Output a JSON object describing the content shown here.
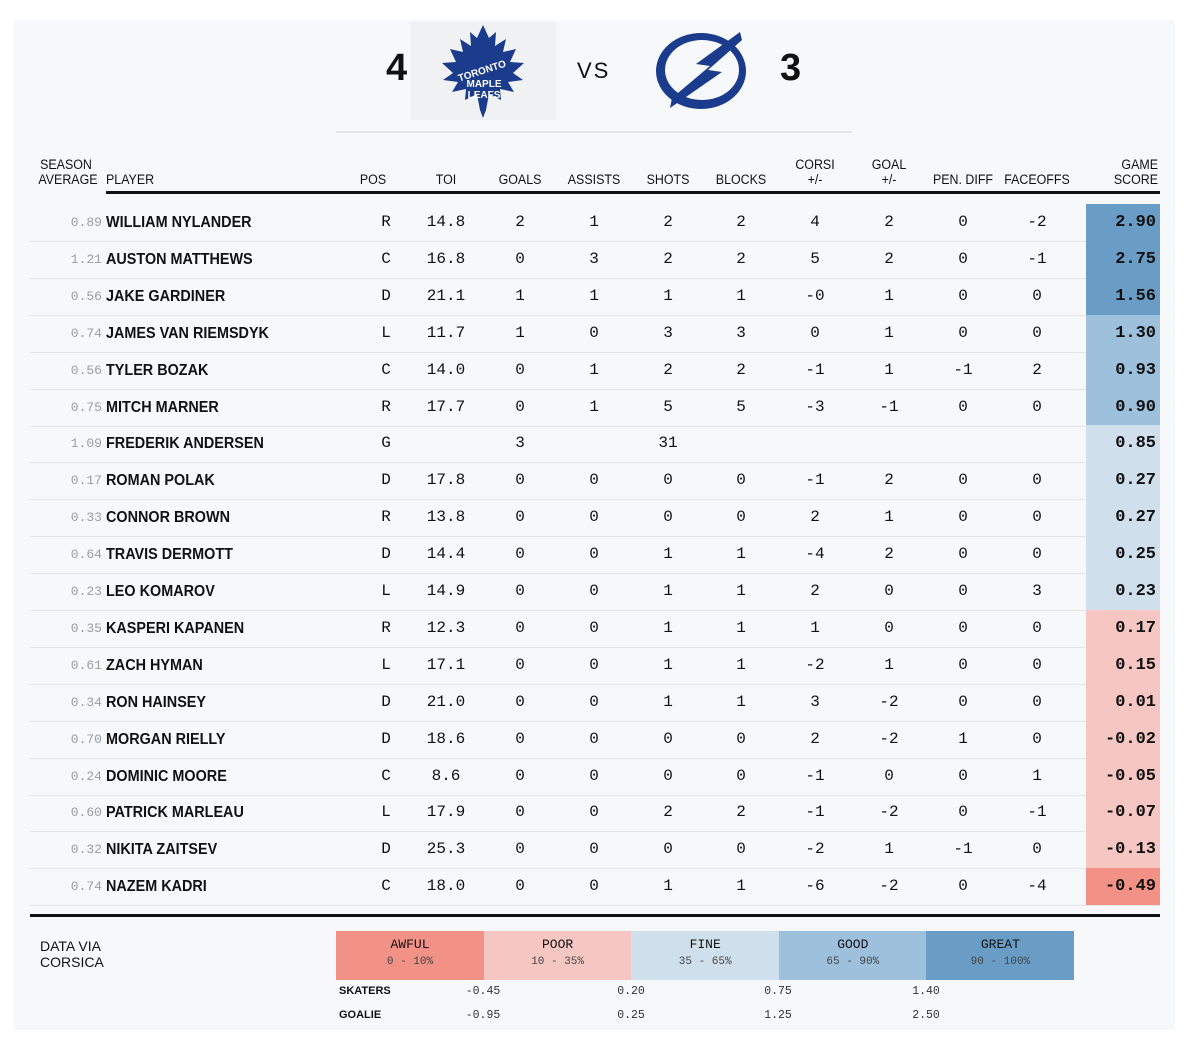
{
  "header": {
    "home_score": "4",
    "away_score": "3",
    "vs_label": "VS",
    "home_logo_text": [
      "TORONTO",
      "MAPLE",
      "LEAFS"
    ],
    "home_color": "#1b3b8c",
    "away_color": "#1b3b8c"
  },
  "columns": {
    "season_average": [
      "SEASON",
      "AVERAGE"
    ],
    "player": "PLAYER",
    "pos": "POS",
    "toi": "TOI",
    "goals": "GOALS",
    "assists": "ASSISTS",
    "shots": "SHOTS",
    "blocks": "BLOCKS",
    "corsi": [
      "CORSI",
      "+/-"
    ],
    "goal_pm": [
      "GOAL",
      "+/-"
    ],
    "pen_diff": "PEN. DIFF",
    "faceoffs": "FACEOFFS",
    "game_score": [
      "GAME",
      "SCORE"
    ]
  },
  "rows": [
    {
      "avg": "0.89",
      "name": "WILLIAM NYLANDER",
      "pos": "R",
      "toi": "14.8",
      "goals": "2",
      "assists": "1",
      "shots": "2",
      "blocks": "2",
      "corsi": "4",
      "goal_pm": "2",
      "pen": "0",
      "faceoffs": "-2",
      "gs": "2.90",
      "tier": "great"
    },
    {
      "avg": "1.21",
      "name": "AUSTON MATTHEWS",
      "pos": "C",
      "toi": "16.8",
      "goals": "0",
      "assists": "3",
      "shots": "2",
      "blocks": "2",
      "corsi": "5",
      "goal_pm": "2",
      "pen": "0",
      "faceoffs": "-1",
      "gs": "2.75",
      "tier": "great"
    },
    {
      "avg": "0.56",
      "name": "JAKE GARDINER",
      "pos": "D",
      "toi": "21.1",
      "goals": "1",
      "assists": "1",
      "shots": "1",
      "blocks": "1",
      "corsi": "-0",
      "goal_pm": "1",
      "pen": "0",
      "faceoffs": "0",
      "gs": "1.56",
      "tier": "great"
    },
    {
      "avg": "0.74",
      "name": "JAMES VAN RIEMSDYK",
      "pos": "L",
      "toi": "11.7",
      "goals": "1",
      "assists": "0",
      "shots": "3",
      "blocks": "3",
      "corsi": "0",
      "goal_pm": "1",
      "pen": "0",
      "faceoffs": "0",
      "gs": "1.30",
      "tier": "good"
    },
    {
      "avg": "0.56",
      "name": "TYLER BOZAK",
      "pos": "C",
      "toi": "14.0",
      "goals": "0",
      "assists": "1",
      "shots": "2",
      "blocks": "2",
      "corsi": "-1",
      "goal_pm": "1",
      "pen": "-1",
      "faceoffs": "2",
      "gs": "0.93",
      "tier": "good"
    },
    {
      "avg": "0.75",
      "name": "MITCH MARNER",
      "pos": "R",
      "toi": "17.7",
      "goals": "0",
      "assists": "1",
      "shots": "5",
      "blocks": "5",
      "corsi": "-3",
      "goal_pm": "-1",
      "pen": "0",
      "faceoffs": "0",
      "gs": "0.90",
      "tier": "good"
    },
    {
      "avg": "1.09",
      "name": "FREDERIK ANDERSEN",
      "pos": "G",
      "toi": "",
      "goals": "3",
      "assists": "",
      "shots": "31",
      "blocks": "",
      "corsi": "",
      "goal_pm": "",
      "pen": "",
      "faceoffs": "",
      "gs": "0.85",
      "tier": "fine"
    },
    {
      "avg": "0.17",
      "name": "ROMAN POLAK",
      "pos": "D",
      "toi": "17.8",
      "goals": "0",
      "assists": "0",
      "shots": "0",
      "blocks": "0",
      "corsi": "-1",
      "goal_pm": "2",
      "pen": "0",
      "faceoffs": "0",
      "gs": "0.27",
      "tier": "fine"
    },
    {
      "avg": "0.33",
      "name": "CONNOR BROWN",
      "pos": "R",
      "toi": "13.8",
      "goals": "0",
      "assists": "0",
      "shots": "0",
      "blocks": "0",
      "corsi": "2",
      "goal_pm": "1",
      "pen": "0",
      "faceoffs": "0",
      "gs": "0.27",
      "tier": "fine"
    },
    {
      "avg": "0.64",
      "name": "TRAVIS DERMOTT",
      "pos": "D",
      "toi": "14.4",
      "goals": "0",
      "assists": "0",
      "shots": "1",
      "blocks": "1",
      "corsi": "-4",
      "goal_pm": "2",
      "pen": "0",
      "faceoffs": "0",
      "gs": "0.25",
      "tier": "fine"
    },
    {
      "avg": "0.23",
      "name": "LEO KOMAROV",
      "pos": "L",
      "toi": "14.9",
      "goals": "0",
      "assists": "0",
      "shots": "1",
      "blocks": "1",
      "corsi": "2",
      "goal_pm": "0",
      "pen": "0",
      "faceoffs": "3",
      "gs": "0.23",
      "tier": "fine"
    },
    {
      "avg": "0.35",
      "name": "KASPERI KAPANEN",
      "pos": "R",
      "toi": "12.3",
      "goals": "0",
      "assists": "0",
      "shots": "1",
      "blocks": "1",
      "corsi": "1",
      "goal_pm": "0",
      "pen": "0",
      "faceoffs": "0",
      "gs": "0.17",
      "tier": "poor"
    },
    {
      "avg": "0.61",
      "name": "ZACH HYMAN",
      "pos": "L",
      "toi": "17.1",
      "goals": "0",
      "assists": "0",
      "shots": "1",
      "blocks": "1",
      "corsi": "-2",
      "goal_pm": "1",
      "pen": "0",
      "faceoffs": "0",
      "gs": "0.15",
      "tier": "poor"
    },
    {
      "avg": "0.34",
      "name": "RON HAINSEY",
      "pos": "D",
      "toi": "21.0",
      "goals": "0",
      "assists": "0",
      "shots": "1",
      "blocks": "1",
      "corsi": "3",
      "goal_pm": "-2",
      "pen": "0",
      "faceoffs": "0",
      "gs": "0.01",
      "tier": "poor"
    },
    {
      "avg": "0.70",
      "name": "MORGAN RIELLY",
      "pos": "D",
      "toi": "18.6",
      "goals": "0",
      "assists": "0",
      "shots": "0",
      "blocks": "0",
      "corsi": "2",
      "goal_pm": "-2",
      "pen": "1",
      "faceoffs": "0",
      "gs": "-0.02",
      "tier": "poor"
    },
    {
      "avg": "0.24",
      "name": "DOMINIC MOORE",
      "pos": "C",
      "toi": "8.6",
      "goals": "0",
      "assists": "0",
      "shots": "0",
      "blocks": "0",
      "corsi": "-1",
      "goal_pm": "0",
      "pen": "0",
      "faceoffs": "1",
      "gs": "-0.05",
      "tier": "poor"
    },
    {
      "avg": "0.60",
      "name": "PATRICK MARLEAU",
      "pos": "L",
      "toi": "17.9",
      "goals": "0",
      "assists": "0",
      "shots": "2",
      "blocks": "2",
      "corsi": "-1",
      "goal_pm": "-2",
      "pen": "0",
      "faceoffs": "-1",
      "gs": "-0.07",
      "tier": "poor"
    },
    {
      "avg": "0.32",
      "name": "NIKITA ZAITSEV",
      "pos": "D",
      "toi": "25.3",
      "goals": "0",
      "assists": "0",
      "shots": "0",
      "blocks": "0",
      "corsi": "-2",
      "goal_pm": "1",
      "pen": "-1",
      "faceoffs": "0",
      "gs": "-0.13",
      "tier": "poor"
    },
    {
      "avg": "0.74",
      "name": "NAZEM KADRI",
      "pos": "C",
      "toi": "18.0",
      "goals": "0",
      "assists": "0",
      "shots": "1",
      "blocks": "1",
      "corsi": "-6",
      "goal_pm": "-2",
      "pen": "0",
      "faceoffs": "-4",
      "gs": "-0.49",
      "tier": "awful"
    }
  ],
  "tier_colors": {
    "great": "#6a9dc6",
    "good": "#9dc0dc",
    "fine": "#cfe0ec",
    "poor": "#f6c7c2",
    "awful": "#f29186"
  },
  "legend": {
    "source": [
      "DATA VIA",
      "CORSICA"
    ],
    "tiers": [
      {
        "key": "awful",
        "label": "AWFUL",
        "range": "0 - 10%"
      },
      {
        "key": "poor",
        "label": "POOR",
        "range": "10 - 35%"
      },
      {
        "key": "fine",
        "label": "FINE",
        "range": "35 - 65%"
      },
      {
        "key": "good",
        "label": "GOOD",
        "range": "65 - 90%"
      },
      {
        "key": "great",
        "label": "GREAT",
        "range": "90 - 100%"
      }
    ],
    "skaters_label": "SKATERS",
    "skaters_thresholds": [
      "-0.45",
      "0.20",
      "0.75",
      "1.40"
    ],
    "goalie_label": "GOALIE",
    "goalie_thresholds": [
      "-0.95",
      "0.25",
      "1.25",
      "2.50"
    ]
  }
}
